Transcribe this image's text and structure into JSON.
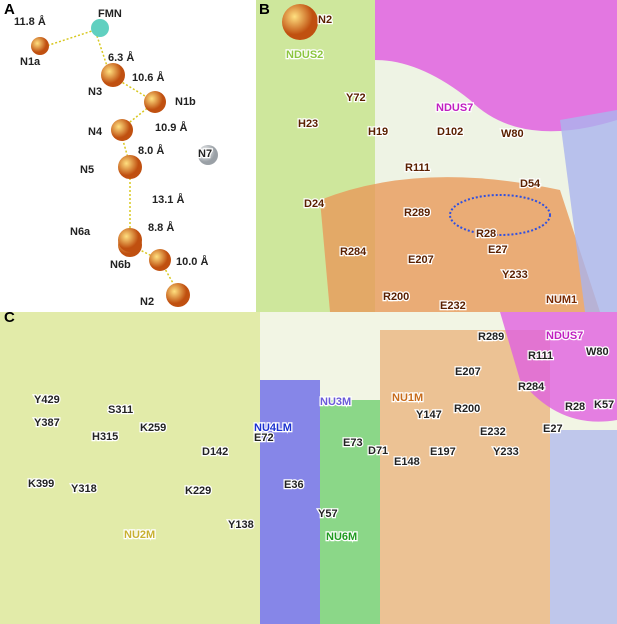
{
  "panels": [
    {
      "letter": "A",
      "labels": [
        "FMN",
        "11.8 Å",
        "N1a",
        "6.3 Å",
        "N3",
        "10.6 Å",
        "N1b",
        "N4",
        "10.9 Å",
        "N7",
        "8.0 Å",
        "N5",
        "13.1 Å",
        "N6a",
        "8.8 Å",
        "N6b",
        "10.0 Å",
        "N2"
      ]
    },
    {
      "letter": "B",
      "labels": [
        "N2",
        "NDUS2",
        "Y72",
        "H23",
        "H19",
        "D24",
        "NDUS7",
        "D102",
        "W80",
        "R111",
        "D54",
        "R289",
        "R28",
        "E27",
        "R284",
        "E207",
        "Y233",
        "R200",
        "E232",
        "NUM1"
      ]
    },
    {
      "letter": "C",
      "labels": [
        "Y429",
        "S311",
        "Y387",
        "K259",
        "H315",
        "D142",
        "E72",
        "NU4LM",
        "NU3M",
        "NU1M",
        "R289",
        "R111",
        "NDUS7",
        "W80",
        "E207",
        "R284",
        "Y147",
        "R200",
        "E73",
        "D71",
        "K57",
        "R28",
        "E27",
        "K399",
        "Y318",
        "K229",
        "E148",
        "E197",
        "E232",
        "Y233",
        "E36",
        "Y138",
        "Y57",
        "NU2M",
        "NU6M"
      ]
    }
  ]
}
